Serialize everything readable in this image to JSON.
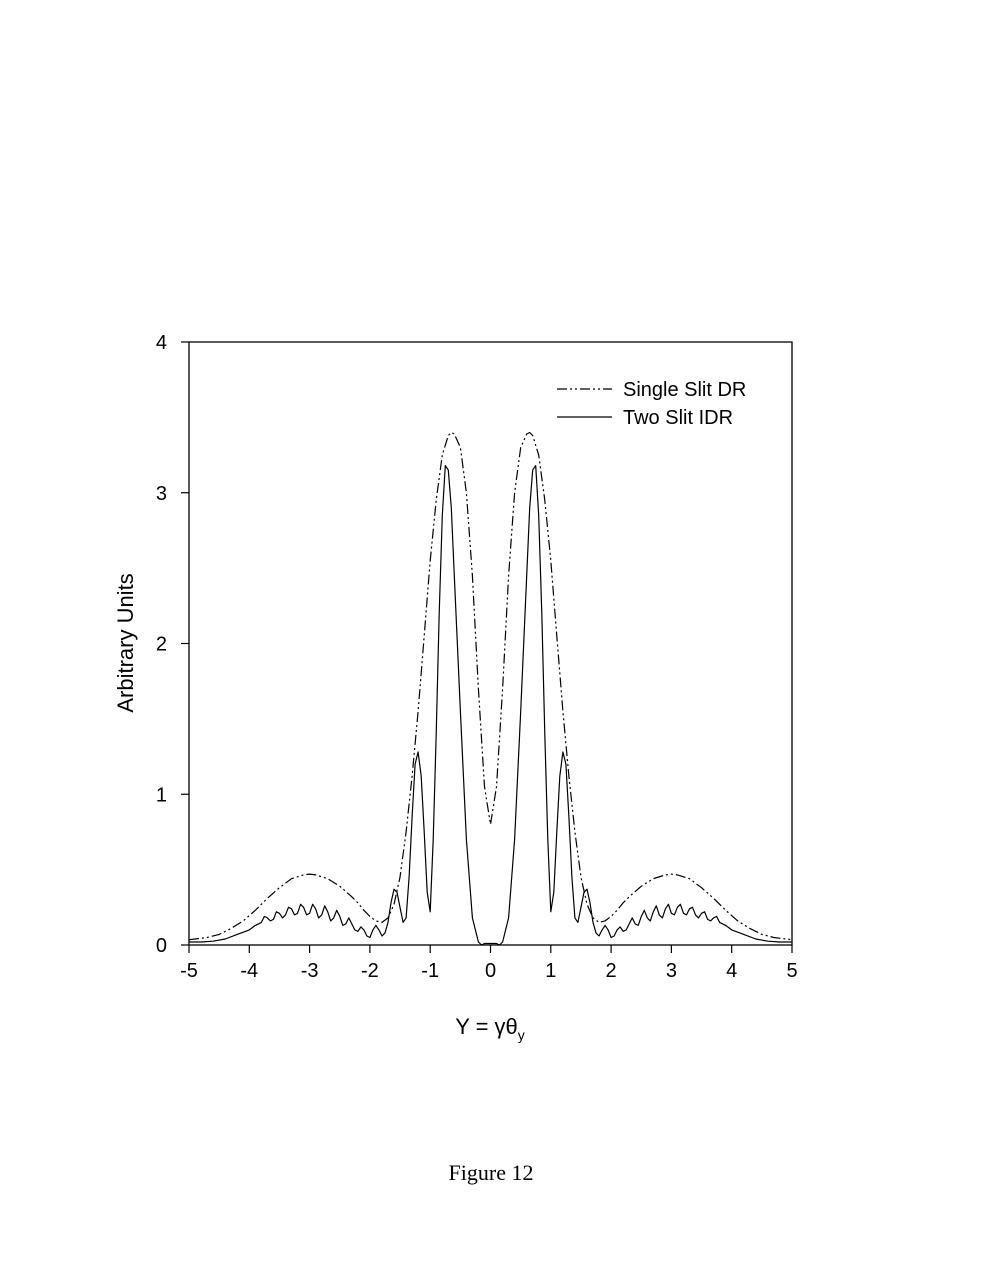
{
  "chart_data": {
    "type": "line",
    "xlabel_main": "Y = γθ",
    "xlabel_sub": "y",
    "ylabel": "Arbitrary Units",
    "xlim": [
      -5,
      5
    ],
    "ylim": [
      0,
      4
    ],
    "xticks": [
      "-5",
      "-4",
      "-3",
      "-2",
      "-1",
      "0",
      "1",
      "2",
      "3",
      "4",
      "5"
    ],
    "yticks": [
      "0",
      "1",
      "2",
      "3",
      "4"
    ],
    "legend_position": "top-right",
    "grid": false,
    "series": [
      {
        "name": "Single Slit DR",
        "style": "dash-dot-dot",
        "x": [
          0,
          0.1,
          0.2,
          0.3,
          0.4,
          0.5,
          0.6,
          0.65,
          0.7,
          0.8,
          0.9,
          1.0,
          1.1,
          1.2,
          1.3,
          1.4,
          1.5,
          1.6,
          1.7,
          1.8,
          1.9,
          2.0,
          2.1,
          2.2,
          2.3,
          2.5,
          2.7,
          2.9,
          3.0,
          3.1,
          3.3,
          3.5,
          3.7,
          3.9,
          4.1,
          4.3,
          4.5,
          4.7,
          4.9,
          5.0
        ],
        "y": [
          0.8,
          1.05,
          1.7,
          2.45,
          3.0,
          3.3,
          3.39,
          3.4,
          3.38,
          3.25,
          2.95,
          2.55,
          2.05,
          1.55,
          1.12,
          0.75,
          0.45,
          0.27,
          0.18,
          0.15,
          0.16,
          0.19,
          0.23,
          0.28,
          0.32,
          0.39,
          0.44,
          0.465,
          0.47,
          0.465,
          0.44,
          0.38,
          0.31,
          0.23,
          0.16,
          0.11,
          0.07,
          0.05,
          0.04,
          0.035
        ]
      },
      {
        "name": "Two Slit IDR",
        "style": "solid",
        "x": [
          0,
          0.1,
          0.15,
          0.2,
          0.3,
          0.4,
          0.5,
          0.6,
          0.65,
          0.7,
          0.75,
          0.8,
          0.85,
          0.9,
          0.95,
          1.0,
          1.05,
          1.1,
          1.15,
          1.2,
          1.25,
          1.3,
          1.35,
          1.4,
          1.45,
          1.5,
          1.55,
          1.6,
          1.65,
          1.7,
          1.75,
          1.8,
          1.85,
          1.9,
          1.95,
          2.0,
          2.05,
          2.1,
          2.15,
          2.2,
          2.25,
          2.3,
          2.35,
          2.4,
          2.45,
          2.5,
          2.55,
          2.6,
          2.65,
          2.7,
          2.75,
          2.8,
          2.85,
          2.9,
          2.95,
          3.0,
          3.05,
          3.1,
          3.15,
          3.2,
          3.25,
          3.3,
          3.35,
          3.4,
          3.45,
          3.5,
          3.55,
          3.6,
          3.65,
          3.7,
          3.75,
          3.8,
          3.9,
          4.0,
          4.2,
          4.4,
          4.6,
          4.8,
          5.0
        ],
        "y": [
          0.01,
          0.01,
          0.0,
          0.02,
          0.18,
          0.7,
          1.55,
          2.45,
          2.9,
          3.15,
          3.18,
          2.85,
          2.2,
          1.4,
          0.7,
          0.22,
          0.35,
          0.75,
          1.12,
          1.28,
          1.2,
          0.85,
          0.45,
          0.18,
          0.15,
          0.25,
          0.35,
          0.37,
          0.28,
          0.15,
          0.08,
          0.06,
          0.1,
          0.13,
          0.1,
          0.05,
          0.06,
          0.1,
          0.12,
          0.09,
          0.1,
          0.14,
          0.18,
          0.14,
          0.13,
          0.19,
          0.23,
          0.18,
          0.16,
          0.22,
          0.26,
          0.2,
          0.18,
          0.24,
          0.27,
          0.21,
          0.2,
          0.25,
          0.27,
          0.21,
          0.2,
          0.24,
          0.25,
          0.2,
          0.18,
          0.21,
          0.22,
          0.17,
          0.16,
          0.18,
          0.19,
          0.15,
          0.13,
          0.1,
          0.07,
          0.04,
          0.025,
          0.02,
          0.02
        ]
      }
    ]
  },
  "caption": "Figure 12"
}
